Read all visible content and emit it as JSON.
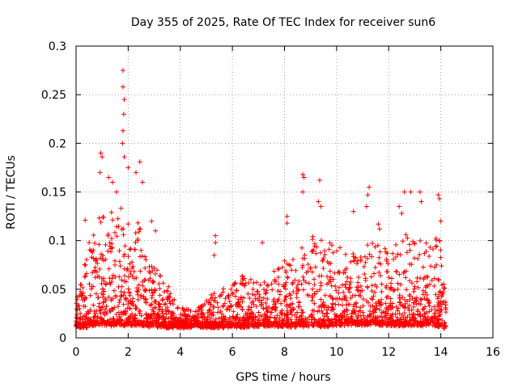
{
  "chart_data": {
    "type": "scatter",
    "title": "Day 355 of 2025, Rate Of TEC Index for receiver sun6",
    "xlabel": "GPS time / hours",
    "ylabel": "ROTI / TECUs",
    "xlim": [
      0,
      16
    ],
    "ylim": [
      0,
      0.3
    ],
    "xticks": [
      "0",
      "2",
      "4",
      "6",
      "8",
      "10",
      "12",
      "14",
      "16"
    ],
    "yticks": [
      "0",
      "0.05",
      "0.1",
      "0.15",
      "0.2",
      "0.25",
      "0.3"
    ],
    "grid": true,
    "marker": "+",
    "series_color": "#ff0000",
    "envelope": {
      "x": [
        0,
        0.2,
        0.4,
        0.6,
        0.8,
        1.0,
        1.2,
        1.4,
        1.6,
        1.8,
        2.0,
        2.2,
        2.4,
        2.6,
        2.8,
        3.0,
        3.2,
        3.4,
        3.6,
        3.8,
        4.0,
        4.4,
        4.8,
        5.2,
        5.6,
        6.0,
        6.4,
        6.8,
        7.2,
        7.6,
        8.0,
        8.4,
        8.8,
        9.2,
        9.6,
        10.0,
        10.4,
        10.8,
        11.2,
        11.6,
        12.0,
        12.4,
        12.8,
        13.2,
        13.6,
        14.0,
        14.2
      ],
      "base": [
        0.012,
        0.012,
        0.012,
        0.013,
        0.013,
        0.014,
        0.014,
        0.014,
        0.014,
        0.014,
        0.014,
        0.014,
        0.013,
        0.013,
        0.013,
        0.013,
        0.012,
        0.012,
        0.012,
        0.012,
        0.012,
        0.012,
        0.012,
        0.012,
        0.012,
        0.012,
        0.012,
        0.013,
        0.013,
        0.013,
        0.013,
        0.013,
        0.013,
        0.013,
        0.013,
        0.014,
        0.014,
        0.014,
        0.014,
        0.014,
        0.014,
        0.014,
        0.014,
        0.014,
        0.014,
        0.012,
        0.01
      ],
      "top": [
        0.04,
        0.06,
        0.09,
        0.11,
        0.12,
        0.14,
        0.12,
        0.14,
        0.13,
        0.14,
        0.12,
        0.1,
        0.13,
        0.1,
        0.08,
        0.09,
        0.07,
        0.06,
        0.05,
        0.04,
        0.03,
        0.03,
        0.035,
        0.045,
        0.05,
        0.06,
        0.065,
        0.06,
        0.065,
        0.07,
        0.08,
        0.09,
        0.1,
        0.11,
        0.1,
        0.1,
        0.09,
        0.09,
        0.1,
        0.1,
        0.09,
        0.1,
        0.11,
        0.1,
        0.1,
        0.11,
        0.05
      ]
    },
    "notable_points": [
      {
        "x": 0.35,
        "y": 0.121
      },
      {
        "x": 0.5,
        "y": 0.098
      },
      {
        "x": 0.95,
        "y": 0.19
      },
      {
        "x": 1.0,
        "y": 0.186
      },
      {
        "x": 0.92,
        "y": 0.17
      },
      {
        "x": 1.25,
        "y": 0.165
      },
      {
        "x": 1.4,
        "y": 0.16
      },
      {
        "x": 1.55,
        "y": 0.15
      },
      {
        "x": 1.8,
        "y": 0.275
      },
      {
        "x": 1.8,
        "y": 0.258
      },
      {
        "x": 1.85,
        "y": 0.245
      },
      {
        "x": 1.83,
        "y": 0.23
      },
      {
        "x": 1.8,
        "y": 0.213
      },
      {
        "x": 1.78,
        "y": 0.2
      },
      {
        "x": 1.85,
        "y": 0.186
      },
      {
        "x": 2.0,
        "y": 0.175
      },
      {
        "x": 2.45,
        "y": 0.181
      },
      {
        "x": 2.3,
        "y": 0.17
      },
      {
        "x": 2.55,
        "y": 0.16
      },
      {
        "x": 2.9,
        "y": 0.12
      },
      {
        "x": 3.05,
        "y": 0.11
      },
      {
        "x": 5.35,
        "y": 0.105
      },
      {
        "x": 5.35,
        "y": 0.098
      },
      {
        "x": 5.3,
        "y": 0.085
      },
      {
        "x": 7.15,
        "y": 0.098
      },
      {
        "x": 8.1,
        "y": 0.125
      },
      {
        "x": 8.1,
        "y": 0.118
      },
      {
        "x": 8.7,
        "y": 0.168
      },
      {
        "x": 8.75,
        "y": 0.165
      },
      {
        "x": 8.7,
        "y": 0.15
      },
      {
        "x": 9.35,
        "y": 0.162
      },
      {
        "x": 9.3,
        "y": 0.14
      },
      {
        "x": 9.4,
        "y": 0.135
      },
      {
        "x": 10.65,
        "y": 0.13
      },
      {
        "x": 11.25,
        "y": 0.155
      },
      {
        "x": 11.2,
        "y": 0.147
      },
      {
        "x": 11.15,
        "y": 0.135
      },
      {
        "x": 11.6,
        "y": 0.117
      },
      {
        "x": 11.65,
        "y": 0.112
      },
      {
        "x": 12.6,
        "y": 0.15
      },
      {
        "x": 12.85,
        "y": 0.15
      },
      {
        "x": 12.4,
        "y": 0.135
      },
      {
        "x": 12.5,
        "y": 0.128
      },
      {
        "x": 13.2,
        "y": 0.15
      },
      {
        "x": 13.25,
        "y": 0.14
      },
      {
        "x": 13.9,
        "y": 0.147
      },
      {
        "x": 13.95,
        "y": 0.143
      },
      {
        "x": 14.0,
        "y": 0.12
      },
      {
        "x": 13.95,
        "y": 0.1
      }
    ]
  }
}
